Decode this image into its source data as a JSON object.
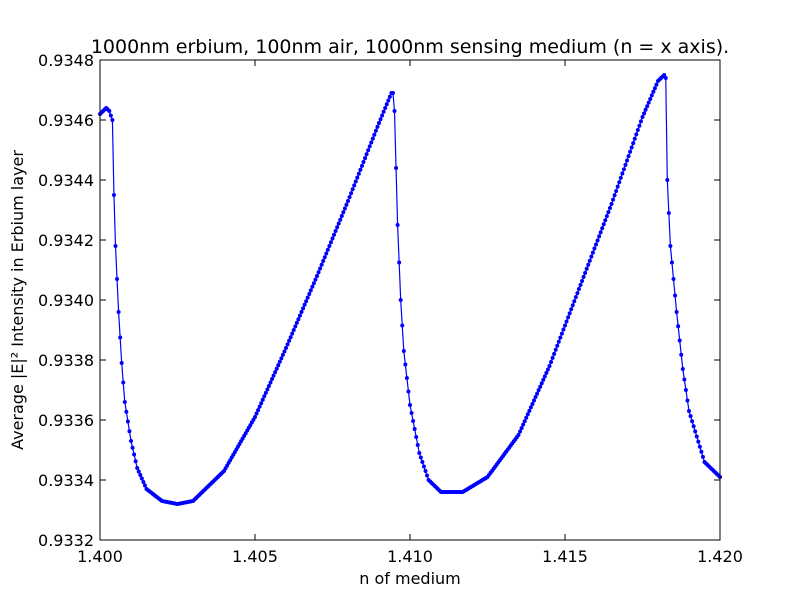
{
  "chart_data": {
    "type": "line",
    "title": "1000nm erbium, 100nm air, 1000nm sensing medium (n = x axis).",
    "xlabel": "n of medium",
    "ylabel": "Average |E|² Intensity in Erbium layer",
    "xlim": [
      1.4,
      1.42
    ],
    "ylim": [
      0.9332,
      0.9348
    ],
    "xticks": [
      1.4,
      1.405,
      1.41,
      1.415,
      1.42
    ],
    "xtick_labels": [
      "1.400",
      "1.405",
      "1.410",
      "1.415",
      "1.420"
    ],
    "yticks": [
      0.9332,
      0.9334,
      0.9336,
      0.9338,
      0.934,
      0.9342,
      0.9344,
      0.9346,
      0.9348
    ],
    "ytick_labels": [
      "0.9332",
      "0.9334",
      "0.9336",
      "0.9338",
      "0.9340",
      "0.9342",
      "0.9344",
      "0.9346",
      "0.9348"
    ],
    "grid": false,
    "legend": "none",
    "series": [
      {
        "color": "#0000ff",
        "marker": "dot",
        "x": [
          1.4,
          1.4002,
          1.4003,
          1.4004,
          1.40045,
          1.4005,
          1.4006,
          1.4007,
          1.4008,
          1.401,
          1.4012,
          1.4015,
          1.402,
          1.4025,
          1.403,
          1.404,
          1.405,
          1.406,
          1.407,
          1.408,
          1.409,
          1.4094,
          1.40945,
          1.4095,
          1.4096,
          1.4097,
          1.4098,
          1.41,
          1.4103,
          1.4106,
          1.411,
          1.4117,
          1.4125,
          1.4135,
          1.4145,
          1.4155,
          1.4165,
          1.4175,
          1.418,
          1.4182,
          1.41825,
          1.4183,
          1.4184,
          1.4186,
          1.4188,
          1.419,
          1.4195,
          1.42
        ],
        "y": [
          0.93462,
          0.93464,
          0.93463,
          0.9346,
          0.93435,
          0.93418,
          0.93396,
          0.93379,
          0.93366,
          0.93353,
          0.93344,
          0.93337,
          0.93333,
          0.93332,
          0.93333,
          0.93343,
          0.93361,
          0.93384,
          0.93408,
          0.93433,
          0.93459,
          0.93469,
          0.93469,
          0.93463,
          0.93425,
          0.934,
          0.93383,
          0.93365,
          0.93349,
          0.9334,
          0.93336,
          0.93336,
          0.93341,
          0.93355,
          0.93378,
          0.93405,
          0.93432,
          0.93461,
          0.93473,
          0.93475,
          0.93474,
          0.9344,
          0.93418,
          0.93396,
          0.93377,
          0.93363,
          0.93346,
          0.93341
        ]
      }
    ]
  }
}
